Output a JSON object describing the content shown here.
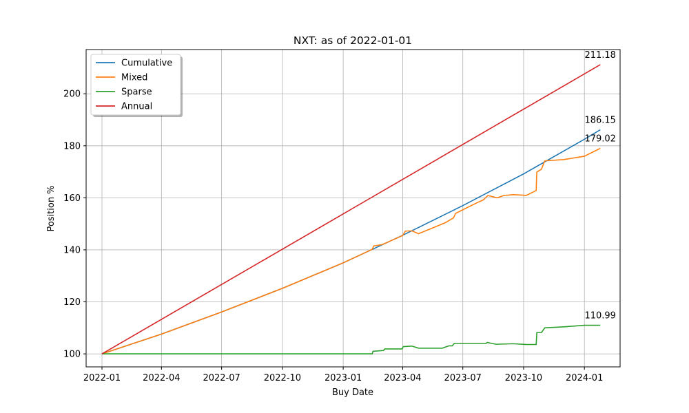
{
  "chart_data": {
    "type": "line",
    "title": "NXT: as of 2022-01-01",
    "xlabel": "Buy Date",
    "ylabel": "Position %",
    "xlim": [
      "2021-12-08",
      "2024-02-24"
    ],
    "ylim": [
      95,
      217
    ],
    "grid": true,
    "legend_position": "top-left",
    "x_ticks": [
      "2022-01",
      "2022-04",
      "2022-07",
      "2022-10",
      "2023-01",
      "2023-04",
      "2023-07",
      "2023-10",
      "2024-01"
    ],
    "y_ticks": [
      100,
      120,
      140,
      160,
      180,
      200
    ],
    "series": [
      {
        "name": "Cumulative",
        "color": "#1f77b4",
        "points": [
          [
            "2022-01-01",
            100
          ],
          [
            "2022-04-01",
            107.6
          ],
          [
            "2022-07-01",
            116.1
          ],
          [
            "2022-10-01",
            125.2
          ],
          [
            "2023-01-01",
            135.0
          ],
          [
            "2023-04-01",
            145.6
          ],
          [
            "2023-07-01",
            157.0
          ],
          [
            "2023-10-01",
            169.2
          ],
          [
            "2024-01-01",
            182.5
          ],
          [
            "2024-01-25",
            186.15
          ]
        ]
      },
      {
        "name": "Mixed",
        "color": "#ff7f0e",
        "points": [
          [
            "2022-01-01",
            100
          ],
          [
            "2022-04-01",
            107.6
          ],
          [
            "2022-07-01",
            116.1
          ],
          [
            "2022-10-01",
            125.2
          ],
          [
            "2023-01-01",
            135.0
          ],
          [
            "2023-02-14",
            140.2
          ],
          [
            "2023-02-16",
            141.5
          ],
          [
            "2023-03-01",
            142.0
          ],
          [
            "2023-04-01",
            145.5
          ],
          [
            "2023-04-05",
            147.2
          ],
          [
            "2023-04-15",
            147.3
          ],
          [
            "2023-04-25",
            146.2
          ],
          [
            "2023-05-20",
            148.8
          ],
          [
            "2023-06-05",
            150.5
          ],
          [
            "2023-06-17",
            152.3
          ],
          [
            "2023-06-20",
            154.0
          ],
          [
            "2023-07-01",
            155.4
          ],
          [
            "2023-07-20",
            157.8
          ],
          [
            "2023-08-01",
            159.2
          ],
          [
            "2023-08-08",
            160.9
          ],
          [
            "2023-08-22",
            160.0
          ],
          [
            "2023-09-01",
            160.9
          ],
          [
            "2023-09-15",
            161.2
          ],
          [
            "2023-10-01",
            161.0
          ],
          [
            "2023-10-05",
            160.9
          ],
          [
            "2023-10-20",
            162.8
          ],
          [
            "2023-10-21",
            169.9
          ],
          [
            "2023-10-28",
            171.0
          ],
          [
            "2023-11-02",
            174.2
          ],
          [
            "2023-12-01",
            174.7
          ],
          [
            "2024-01-01",
            176.0
          ],
          [
            "2024-01-25",
            179.02
          ]
        ]
      },
      {
        "name": "Sparse",
        "color": "#2ca02c",
        "points": [
          [
            "2022-01-01",
            100
          ],
          [
            "2023-02-14",
            100.0
          ],
          [
            "2023-02-15",
            101.0
          ],
          [
            "2023-03-03",
            101.3
          ],
          [
            "2023-03-05",
            101.9
          ],
          [
            "2023-03-31",
            101.9
          ],
          [
            "2023-04-02",
            102.8
          ],
          [
            "2023-04-15",
            103.0
          ],
          [
            "2023-04-25",
            102.2
          ],
          [
            "2023-05-31",
            102.2
          ],
          [
            "2023-06-10",
            103.1
          ],
          [
            "2023-06-15",
            103.1
          ],
          [
            "2023-06-18",
            104.0
          ],
          [
            "2023-08-05",
            104.0
          ],
          [
            "2023-08-07",
            104.4
          ],
          [
            "2023-08-20",
            103.7
          ],
          [
            "2023-09-15",
            103.9
          ],
          [
            "2023-10-05",
            103.6
          ],
          [
            "2023-10-20",
            103.6
          ],
          [
            "2023-10-21",
            108.2
          ],
          [
            "2023-10-28",
            108.2
          ],
          [
            "2023-11-02",
            110.0
          ],
          [
            "2023-12-01",
            110.4
          ],
          [
            "2024-01-01",
            111.0
          ],
          [
            "2024-01-25",
            110.99
          ]
        ]
      },
      {
        "name": "Annual",
        "color": "#d62728",
        "points": [
          [
            "2022-01-01",
            100
          ],
          [
            "2024-01-25",
            211.18
          ]
        ]
      }
    ],
    "annotations": [
      {
        "x": "2024-01-25",
        "y": 211.18,
        "text": "211.18"
      },
      {
        "x": "2024-01-25",
        "y": 186.15,
        "text": "186.15"
      },
      {
        "x": "2024-01-25",
        "y": 179.02,
        "text": "179.02"
      },
      {
        "x": "2024-01-25",
        "y": 110.99,
        "text": "110.99"
      }
    ]
  }
}
